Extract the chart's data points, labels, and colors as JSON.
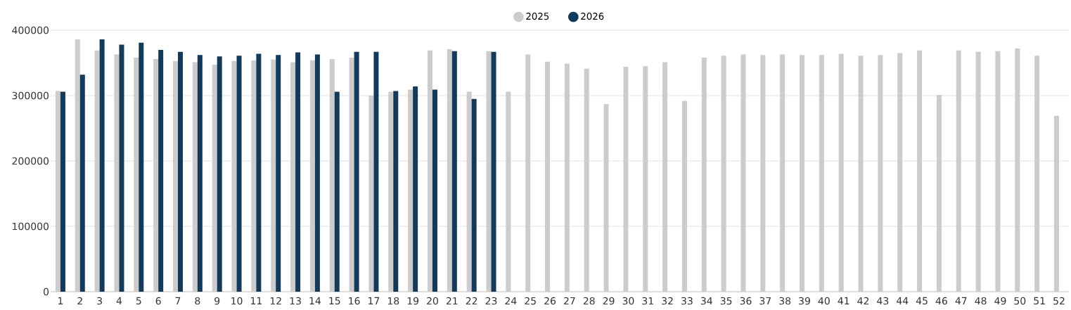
{
  "chart_data": {
    "type": "bar",
    "categories": [
      "1",
      "2",
      "3",
      "4",
      "5",
      "6",
      "7",
      "8",
      "9",
      "10",
      "11",
      "12",
      "13",
      "14",
      "15",
      "16",
      "17",
      "18",
      "19",
      "20",
      "21",
      "22",
      "23",
      "24",
      "25",
      "26",
      "27",
      "28",
      "29",
      "30",
      "31",
      "32",
      "33",
      "34",
      "35",
      "36",
      "37",
      "38",
      "39",
      "40",
      "41",
      "42",
      "43",
      "44",
      "45",
      "46",
      "47",
      "48",
      "49",
      "50",
      "51",
      "52"
    ],
    "series": [
      {
        "name": "2025",
        "color": "#cccccc",
        "values": [
          307000,
          386000,
          369000,
          363000,
          358000,
          356000,
          353000,
          351000,
          347000,
          353000,
          354000,
          355000,
          351000,
          354000,
          356000,
          358000,
          300000,
          306000,
          309000,
          369000,
          371000,
          306000,
          368000,
          306000,
          363000,
          352000,
          349000,
          341000,
          287000,
          344000,
          345000,
          351000,
          292000,
          358000,
          361000,
          363000,
          362000,
          363000,
          362000,
          362000,
          364000,
          361000,
          362000,
          365000,
          369000,
          301000,
          369000,
          367000,
          368000,
          372000,
          361000,
          269000
        ]
      },
      {
        "name": "2026",
        "color": "#133a5a",
        "values": [
          306000,
          332000,
          386000,
          378000,
          381000,
          370000,
          367000,
          362000,
          360000,
          361000,
          364000,
          362000,
          366000,
          363000,
          306000,
          367000,
          367000,
          307000,
          314000,
          309000,
          368000,
          295000,
          367000,
          null,
          null,
          null,
          null,
          null,
          null,
          null,
          null,
          null,
          null,
          null,
          null,
          null,
          null,
          null,
          null,
          null,
          null,
          null,
          null,
          null,
          null,
          null,
          null,
          null,
          null,
          null,
          null,
          null
        ]
      }
    ],
    "ylim": [
      0,
      400000
    ],
    "yticks": [
      0,
      100000,
      200000,
      300000,
      400000
    ],
    "grid": "y",
    "legend": "top"
  }
}
